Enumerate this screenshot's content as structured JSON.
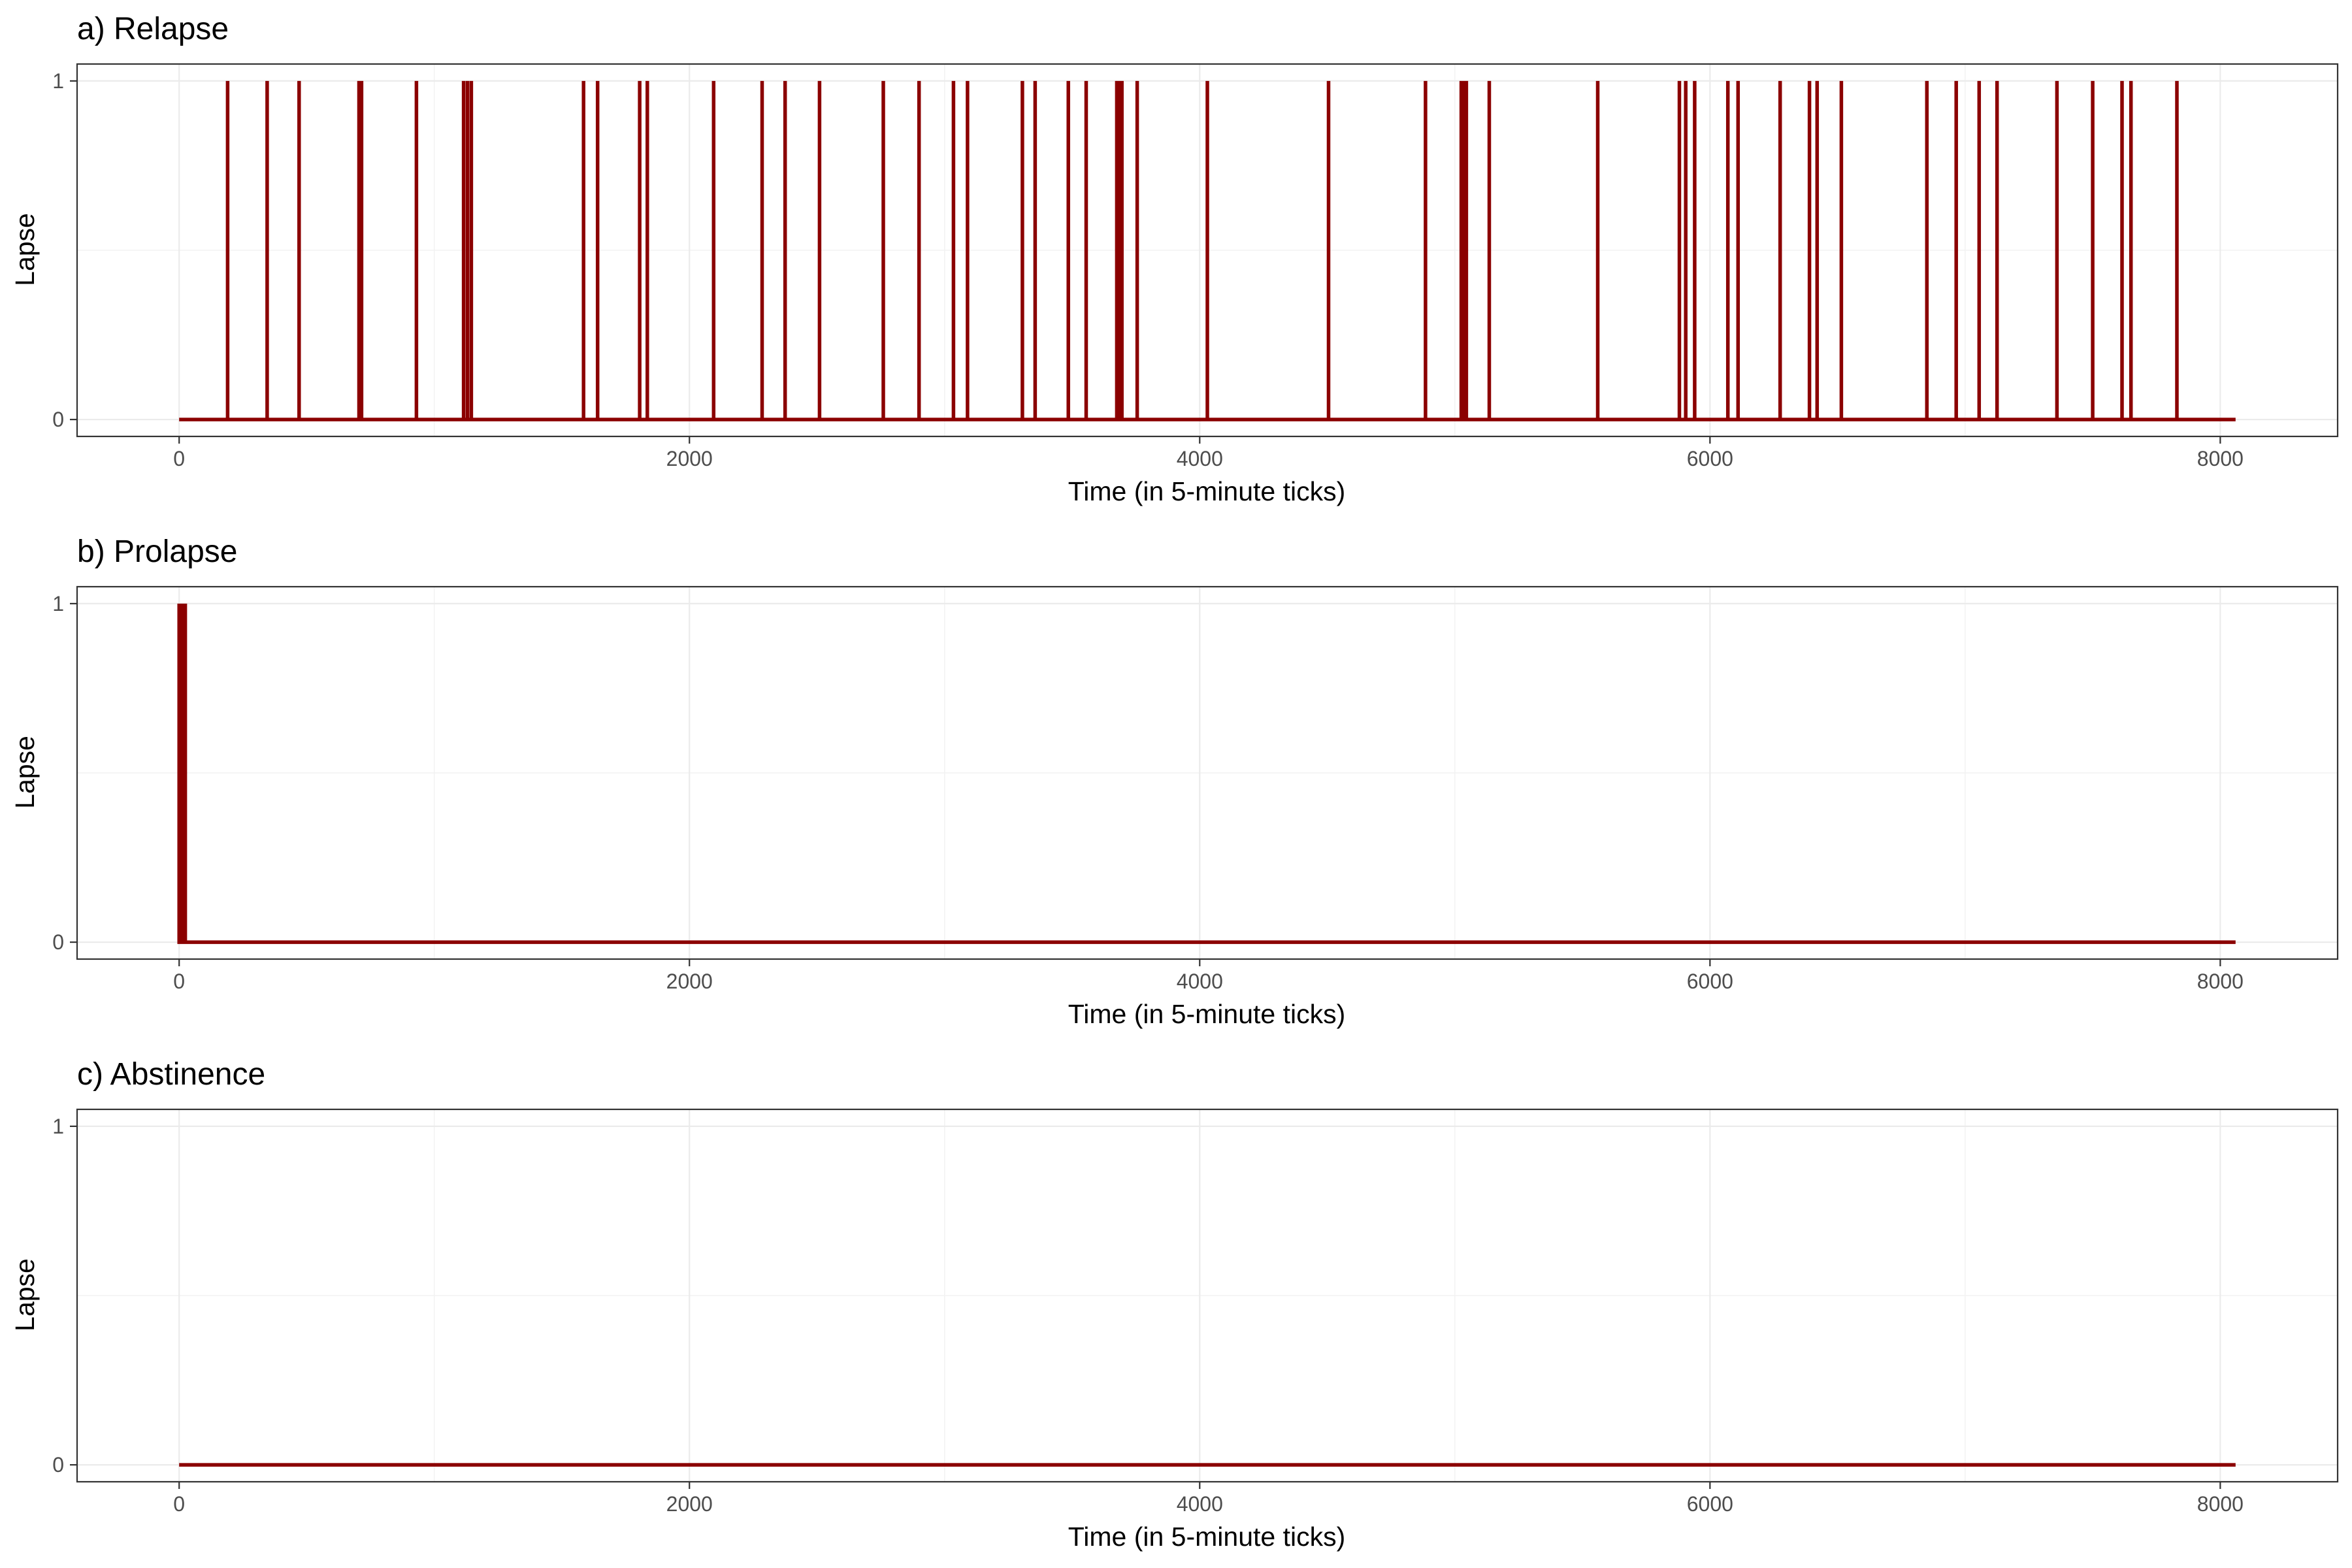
{
  "chart_data": [
    {
      "type": "line",
      "title": "a) Relapse",
      "xlabel": "Time (in 5-minute ticks)",
      "ylabel": "Lapse",
      "xlim": [
        -400,
        8460
      ],
      "ylim": [
        -0.05,
        1.05
      ],
      "x_ticks": [
        0,
        2000,
        4000,
        6000,
        8000
      ],
      "y_ticks": [
        0,
        1
      ],
      "grid": true,
      "series_color": "#8b0000",
      "x_range": [
        0,
        8060
      ],
      "baseline": 0,
      "lapse_times": [
        190,
        345,
        470,
        705,
        715,
        930,
        1115,
        1130,
        1145,
        1585,
        1640,
        1805,
        1835,
        2095,
        2285,
        2375,
        2510,
        2760,
        2900,
        3035,
        3090,
        3305,
        3355,
        3485,
        3555,
        3675,
        3685,
        3695,
        3755,
        4030,
        4505,
        4885,
        5025,
        5035,
        5045,
        5135,
        5560,
        5880,
        5905,
        5940,
        6070,
        6110,
        6275,
        6390,
        6420,
        6515,
        6850,
        6965,
        7055,
        7125,
        7360,
        7500,
        7615,
        7650,
        7830
      ]
    },
    {
      "type": "line",
      "title": "b) Prolapse",
      "xlabel": "Time (in 5-minute ticks)",
      "ylabel": "Lapse",
      "xlim": [
        -400,
        8460
      ],
      "ylim": [
        -0.05,
        1.05
      ],
      "x_ticks": [
        0,
        2000,
        4000,
        6000,
        8000
      ],
      "y_ticks": [
        0,
        1
      ],
      "grid": true,
      "series_color": "#8b0000",
      "x_range": [
        0,
        8060
      ],
      "baseline": 0,
      "lapse_times": [
        0,
        4,
        8,
        12,
        16,
        20,
        24
      ]
    },
    {
      "type": "line",
      "title": "c) Abstinence",
      "xlabel": "Time (in 5-minute ticks)",
      "ylabel": "Lapse",
      "xlim": [
        -400,
        8460
      ],
      "ylim": [
        -0.05,
        1.05
      ],
      "x_ticks": [
        0,
        2000,
        4000,
        6000,
        8000
      ],
      "y_ticks": [
        0,
        1
      ],
      "grid": true,
      "series_color": "#8b0000",
      "x_range": [
        0,
        8060
      ],
      "baseline": 0,
      "lapse_times": []
    }
  ]
}
